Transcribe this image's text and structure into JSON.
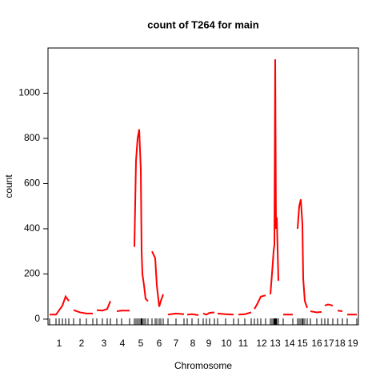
{
  "chart_data": {
    "type": "line",
    "title": "count of T264 for main",
    "xlabel": "Chromosome",
    "ylabel": "count",
    "x": [
      2,
      10,
      14,
      18,
      22,
      26,
      29,
      32,
      40,
      48,
      56,
      58.5,
      61,
      68,
      74,
      78,
      82,
      86,
      92,
      102,
      105,
      108,
      110,
      112,
      114,
      116,
      117,
      118,
      120,
      122,
      125,
      127.5,
      130,
      134,
      136,
      139,
      141,
      144,
      147,
      150,
      160,
      170,
      172,
      174,
      180,
      188,
      191,
      194,
      198,
      202,
      208,
      210,
      212,
      222,
      232,
      235,
      238,
      246,
      254,
      256,
      258,
      262,
      266,
      272,
      275,
      278,
      280,
      282,
      283,
      284,
      285,
      286,
      288,
      291,
      294,
      306,
      309,
      312,
      314,
      316,
      318,
      319,
      321,
      324,
      326,
      328,
      336,
      342,
      344,
      346,
      350,
      356,
      359,
      362,
      368,
      371,
      374,
      386
    ],
    "series": [
      {
        "name": "count",
        "color": "#ff0000",
        "values": [
          20,
          20,
          40,
          60,
          100,
          80,
          null,
          40,
          30,
          25,
          25,
          null,
          40,
          38,
          45,
          80,
          null,
          35,
          38,
          38,
          null,
          320,
          700,
          800,
          840,
          660,
          300,
          200,
          150,
          90,
          80,
          null,
          300,
          270,
          150,
          55,
          80,
          110,
          null,
          20,
          25,
          22,
          null,
          20,
          22,
          18,
          null,
          25,
          20,
          28,
          30,
          null,
          25,
          22,
          20,
          null,
          20,
          22,
          30,
          null,
          45,
          70,
          100,
          105,
          null,
          110,
          200,
          300,
          330,
          1150,
          400,
          450,
          170,
          null,
          20,
          20,
          null,
          400,
          500,
          530,
          420,
          180,
          80,
          50,
          null,
          35,
          30,
          32,
          null,
          60,
          65,
          60,
          null,
          38,
          35,
          null,
          20,
          20
        ]
      }
    ],
    "xlim": [
      0,
      388
    ],
    "ylim": [
      -25,
      1200
    ],
    "xticks": [
      {
        "value": 14,
        "label": "1"
      },
      {
        "value": 42,
        "label": "2"
      },
      {
        "value": 70,
        "label": "3"
      },
      {
        "value": 93,
        "label": "4"
      },
      {
        "value": 116,
        "label": "5"
      },
      {
        "value": 139,
        "label": "6"
      },
      {
        "value": 160,
        "label": "7"
      },
      {
        "value": 181,
        "label": "8"
      },
      {
        "value": 201,
        "label": "9"
      },
      {
        "value": 223,
        "label": "10"
      },
      {
        "value": 244,
        "label": "11"
      },
      {
        "value": 267,
        "label": "12"
      },
      {
        "value": 284,
        "label": "13"
      },
      {
        "value": 302,
        "label": "14"
      },
      {
        "value": 318,
        "label": "15"
      },
      {
        "value": 336,
        "label": "16"
      },
      {
        "value": 351,
        "label": "17"
      },
      {
        "value": 365,
        "label": "18"
      },
      {
        "value": 381,
        "label": "19"
      }
    ],
    "yticks": [
      0,
      200,
      400,
      600,
      800,
      1000
    ]
  }
}
